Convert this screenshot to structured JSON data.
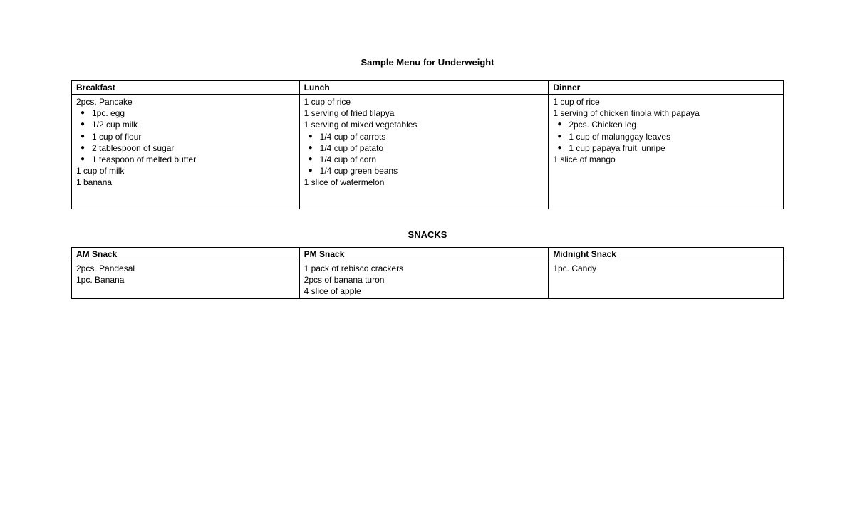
{
  "title": "Sample Menu for Underweight",
  "meals": {
    "headers": [
      "Breakfast",
      "Lunch",
      "Dinner"
    ],
    "rows": [
      {
        "breakfast": [
          {
            "text": "2pcs. Pancake",
            "bullet": false
          },
          {
            "text": "1pc. egg",
            "bullet": true
          },
          {
            "text": "1/2 cup milk",
            "bullet": true
          },
          {
            "text": "1 cup of flour",
            "bullet": true
          },
          {
            "text": "2 tablespoon of sugar",
            "bullet": true
          },
          {
            "text": "1 teaspoon of melted butter",
            "bullet": true
          },
          {
            "text": "1 cup of milk",
            "bullet": false
          },
          {
            "text": "1 banana",
            "bullet": false
          }
        ],
        "lunch": [
          {
            "text": "1 cup of rice",
            "bullet": false
          },
          {
            "text": "1 serving of fried tilapya",
            "bullet": false
          },
          {
            "text": "1 serving of mixed vegetables",
            "bullet": false
          },
          {
            "text": "1/4 cup of carrots",
            "bullet": true
          },
          {
            "text": "1/4 cup of patato",
            "bullet": true
          },
          {
            "text": "1/4 cup of corn",
            "bullet": true
          },
          {
            "text": "1/4 cup green beans",
            "bullet": true
          },
          {
            "text": "1 slice of watermelon",
            "bullet": false
          }
        ],
        "dinner": [
          {
            "text": "1 cup of rice",
            "bullet": false
          },
          {
            "text": "1 serving of chicken tinola with papaya",
            "bullet": false
          },
          {
            "text": "2pcs. Chicken leg",
            "bullet": true
          },
          {
            "text": "1 cup of malunggay leaves",
            "bullet": true
          },
          {
            "text": "1 cup papaya fruit, unripe",
            "bullet": true
          },
          {
            "text": "1 slice of mango",
            "bullet": false
          }
        ]
      }
    ]
  },
  "snacks_title": "SNACKS",
  "snacks": {
    "headers": [
      "AM Snack",
      "PM Snack",
      "Midnight Snack"
    ],
    "rows": [
      {
        "am": [
          {
            "text": "2pcs. Pandesal",
            "bullet": false
          },
          {
            "text": "1pc. Banana",
            "bullet": false
          }
        ],
        "pm": [
          {
            "text": "1 pack of rebisco crackers",
            "bullet": false
          },
          {
            "text": "2pcs of banana turon",
            "bullet": false
          },
          {
            "text": "4 slice of apple",
            "bullet": false
          }
        ],
        "midnight": [
          {
            "text": "1pc. Candy",
            "bullet": false
          }
        ]
      }
    ]
  },
  "styling": {
    "font_family": "Verdana",
    "title_fontsize": 13,
    "body_fontsize": 12,
    "border_color": "#000000",
    "background_color": "#ffffff",
    "text_color": "#000000",
    "column_widths_percent": [
      32,
      35,
      33
    ]
  }
}
